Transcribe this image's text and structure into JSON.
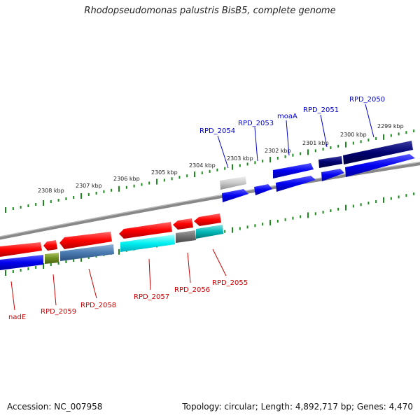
{
  "title": "Rhodopseudomonas palustris BisB5, complete genome",
  "footer": {
    "accession": "Accession: NC_007958",
    "topology": "Topology: circular; Length: 4,892,717 bp; Genes: 4,470"
  },
  "colors": {
    "forward_label": "#0000cc",
    "reverse_label": "#cc0000",
    "ticks": "#1a8a1a",
    "backbone": "#777777"
  },
  "scale_labels": [
    "2308 kbp",
    "2307 kbp",
    "2306 kbp",
    "2305 kbp",
    "2304 kbp",
    "2303 kbp",
    "2302 kbp",
    "2301 kbp",
    "2300 kbp",
    "2299 kbp"
  ],
  "forward_genes": [
    "RPD_2054",
    "RPD_2053",
    "moaA",
    "RPD_2051",
    "RPD_2050"
  ],
  "reverse_genes": [
    "nadE",
    "RPD_2059",
    "RPD_2058",
    "RPD_2057",
    "RPD_2056",
    "RPD_2055"
  ]
}
